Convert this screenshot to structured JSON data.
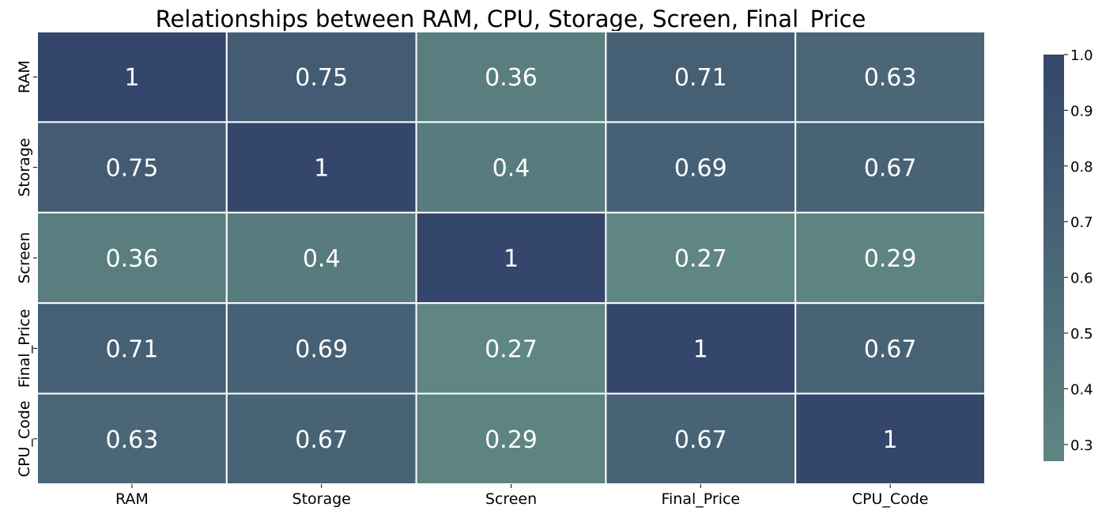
{
  "chart_data": {
    "type": "heatmap",
    "title": "Relationships between RAM, CPU, Storage, Screen, Final_Price",
    "x_labels": [
      "RAM",
      "Storage",
      "Screen",
      "Final_Price",
      "CPU_Code"
    ],
    "y_labels": [
      "RAM",
      "Storage",
      "Screen",
      "Final_Price",
      "CPU_Code"
    ],
    "values": [
      [
        1,
        0.75,
        0.36,
        0.71,
        0.63
      ],
      [
        0.75,
        1,
        0.4,
        0.69,
        0.67
      ],
      [
        0.36,
        0.4,
        1,
        0.27,
        0.29
      ],
      [
        0.71,
        0.69,
        0.27,
        1,
        0.67
      ],
      [
        0.63,
        0.67,
        0.29,
        0.67,
        1
      ]
    ],
    "value_labels": [
      [
        "1",
        "0.75",
        "0.36",
        "0.71",
        "0.63"
      ],
      [
        "0.75",
        "1",
        "0.4",
        "0.69",
        "0.67"
      ],
      [
        "0.36",
        "0.4",
        "1",
        "0.27",
        "0.29"
      ],
      [
        "0.71",
        "0.69",
        "0.27",
        "1",
        "0.67"
      ],
      [
        "0.63",
        "0.67",
        "0.29",
        "0.67",
        "1"
      ]
    ],
    "colorbar": {
      "vmin": 0.27,
      "vmax": 1.0,
      "ticks": [
        0.3,
        0.4,
        0.5,
        0.6,
        0.7,
        0.8,
        0.9,
        1.0
      ],
      "tick_labels": [
        "0.3",
        "0.4",
        "0.5",
        "0.6",
        "0.7",
        "0.8",
        "0.9",
        "1.0"
      ],
      "color_low": "#5f8682",
      "color_high": "#34466b"
    },
    "cell_text_color": "#ffffff",
    "cell_border_color": "#ffffff"
  }
}
